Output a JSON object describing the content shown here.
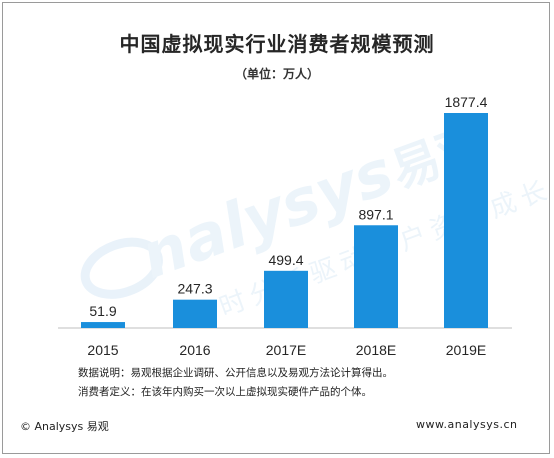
{
  "title": "中国虚拟现实行业消费者规模预测",
  "unit_label": "（单位：万人）",
  "chart_data": {
    "type": "bar",
    "title": "中国虚拟现实行业消费者规模预测",
    "xlabel": "",
    "ylabel": "",
    "categories": [
      "2015",
      "2016",
      "2017E",
      "2018E",
      "2019E"
    ],
    "values": [
      51.9,
      247.3,
      499.4,
      897.1,
      1877.4
    ],
    "value_labels": [
      "51.9",
      "247.3",
      "499.4",
      "897.1",
      "1877.4"
    ],
    "ylim": [
      0,
      2000
    ],
    "grid": false,
    "bar_color": "#1a8fdc"
  },
  "notes": {
    "line1": "数据说明：易观根据企业调研、公开信息以及易观方法论计算得出。",
    "line2": "消费者定义：在该年内购买一次以上虚拟现实硬件产品的个体。"
  },
  "footer": {
    "left": "© Analysys 易观",
    "right": "www.analysys.cn"
  },
  "watermark": {
    "logo_text": "nalysys",
    "brand_cn": "易观",
    "slogan": "实时分析驱动用户资产成长"
  }
}
